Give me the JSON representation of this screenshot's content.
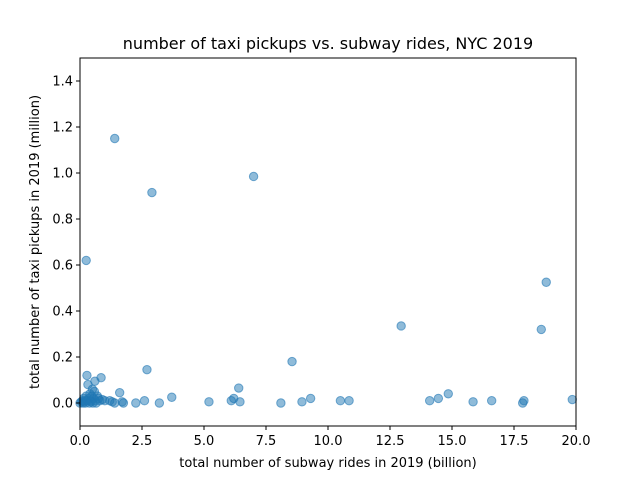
{
  "chart_data": {
    "type": "scatter",
    "title": "number of taxi pickups vs. subway rides, NYC 2019",
    "xlabel": "total number of subway rides in 2019 (billion)",
    "ylabel": "total number of taxi pickups in 2019 (million)",
    "xlim": [
      0,
      20
    ],
    "ylim": [
      -0.1,
      1.5
    ],
    "xticks": [
      "0.0",
      "2.5",
      "5.0",
      "7.5",
      "10.0",
      "12.5",
      "15.0",
      "17.5",
      "20.0"
    ],
    "yticks": [
      "0.0",
      "0.2",
      "0.4",
      "0.6",
      "0.8",
      "1.0",
      "1.2",
      "1.4"
    ],
    "grid": false,
    "marker_color": "#1f77b4",
    "points": [
      [
        0.0,
        0.0
      ],
      [
        0.05,
        0.005
      ],
      [
        0.1,
        0.01
      ],
      [
        0.12,
        0.0
      ],
      [
        0.15,
        0.02
      ],
      [
        0.18,
        0.005
      ],
      [
        0.2,
        0.01
      ],
      [
        0.22,
        0.0
      ],
      [
        0.25,
        0.03
      ],
      [
        0.28,
        0.12
      ],
      [
        0.3,
        0.01
      ],
      [
        0.32,
        0.08
      ],
      [
        0.35,
        0.02
      ],
      [
        0.38,
        0.0
      ],
      [
        0.4,
        0.04
      ],
      [
        0.42,
        0.01
      ],
      [
        0.45,
        0.005
      ],
      [
        0.48,
        0.03
      ],
      [
        0.5,
        0.06
      ],
      [
        0.52,
        0.0
      ],
      [
        0.55,
        0.02
      ],
      [
        0.58,
        0.05
      ],
      [
        0.6,
        0.095
      ],
      [
        0.62,
        0.01
      ],
      [
        0.65,
        0.0
      ],
      [
        0.7,
        0.03
      ],
      [
        0.75,
        0.02
      ],
      [
        0.8,
        0.01
      ],
      [
        0.85,
        0.11
      ],
      [
        0.9,
        0.015
      ],
      [
        1.0,
        0.01
      ],
      [
        1.2,
        0.01
      ],
      [
        1.3,
        0.005
      ],
      [
        1.4,
        0.0
      ],
      [
        1.6,
        0.045
      ],
      [
        1.7,
        0.005
      ],
      [
        1.75,
        0.0
      ],
      [
        0.25,
        0.62
      ],
      [
        1.4,
        1.15
      ],
      [
        2.9,
        0.915
      ],
      [
        7.0,
        0.985
      ],
      [
        2.7,
        0.145
      ],
      [
        2.25,
        0.0
      ],
      [
        2.6,
        0.01
      ],
      [
        3.2,
        0.0
      ],
      [
        3.7,
        0.025
      ],
      [
        5.2,
        0.005
      ],
      [
        6.1,
        0.01
      ],
      [
        6.2,
        0.02
      ],
      [
        6.4,
        0.065
      ],
      [
        6.45,
        0.005
      ],
      [
        8.1,
        0.0
      ],
      [
        8.55,
        0.18
      ],
      [
        8.95,
        0.005
      ],
      [
        9.3,
        0.02
      ],
      [
        10.5,
        0.01
      ],
      [
        10.85,
        0.01
      ],
      [
        12.95,
        0.335
      ],
      [
        14.1,
        0.01
      ],
      [
        14.45,
        0.02
      ],
      [
        14.85,
        0.04
      ],
      [
        15.85,
        0.005
      ],
      [
        16.6,
        0.01
      ],
      [
        17.85,
        0.0
      ],
      [
        17.9,
        0.01
      ],
      [
        18.6,
        0.32
      ],
      [
        18.8,
        0.525
      ],
      [
        19.85,
        0.015
      ]
    ]
  }
}
